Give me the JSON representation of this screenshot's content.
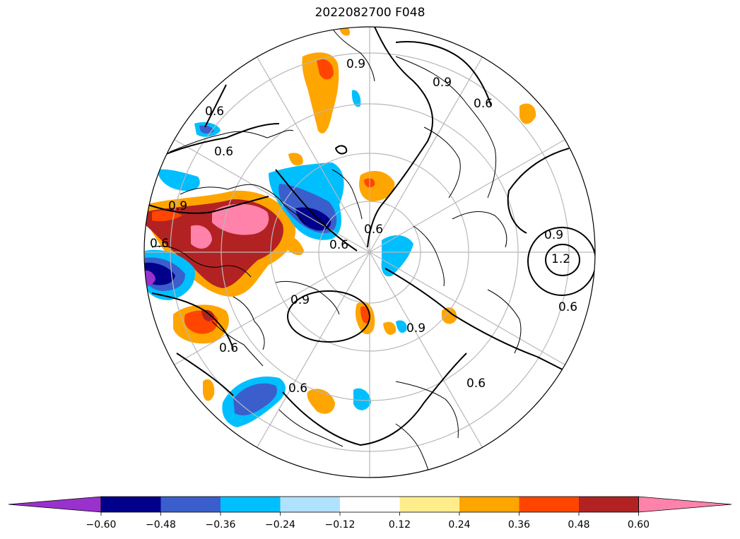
{
  "title": "2022082700 F048",
  "colorbar": {
    "ticks": [
      "−0.60",
      "−0.48",
      "−0.36",
      "−0.24",
      "−0.12",
      "0.12",
      "0.24",
      "0.36",
      "0.48",
      "0.60"
    ],
    "colors": [
      "#9932cc",
      "#00008b",
      "#3a5fcd",
      "#00bfff",
      "#b0e2ff",
      "#ffffff",
      "#ffec8b",
      "#ffa500",
      "#ff4500",
      "#b22222",
      "#ff82ab"
    ]
  },
  "contour_labels": [
    "0.6",
    "0.9",
    "1.2"
  ]
}
